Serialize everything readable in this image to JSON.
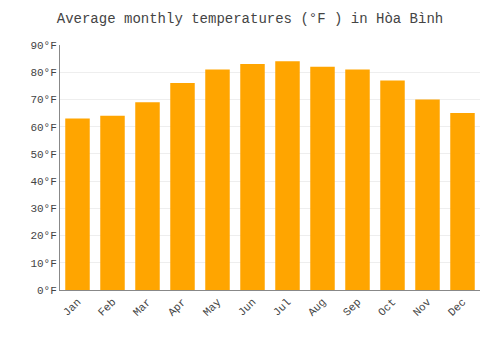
{
  "chart_data": {
    "type": "bar",
    "title": "Average monthly temperatures (°F ) in Hòa Bình",
    "categories": [
      "Jan",
      "Feb",
      "Mar",
      "Apr",
      "May",
      "Jun",
      "Jul",
      "Aug",
      "Sep",
      "Oct",
      "Nov",
      "Dec"
    ],
    "values": [
      63,
      64,
      69,
      76,
      81,
      83,
      84,
      82,
      81,
      77,
      70,
      65
    ],
    "color": "#FFA500",
    "ylim": [
      0,
      90
    ],
    "yticks": [
      {
        "value": 0,
        "label": "0°F"
      },
      {
        "value": 10,
        "label": "10°F"
      },
      {
        "value": 20,
        "label": "20°F"
      },
      {
        "value": 30,
        "label": "30°F"
      },
      {
        "value": 40,
        "label": "40°F"
      },
      {
        "value": 50,
        "label": "50°F"
      },
      {
        "value": 60,
        "label": "60°F"
      },
      {
        "value": 70,
        "label": "70°F"
      },
      {
        "value": 80,
        "label": "80°F"
      },
      {
        "value": 90,
        "label": "90°F"
      }
    ],
    "grid": true
  }
}
